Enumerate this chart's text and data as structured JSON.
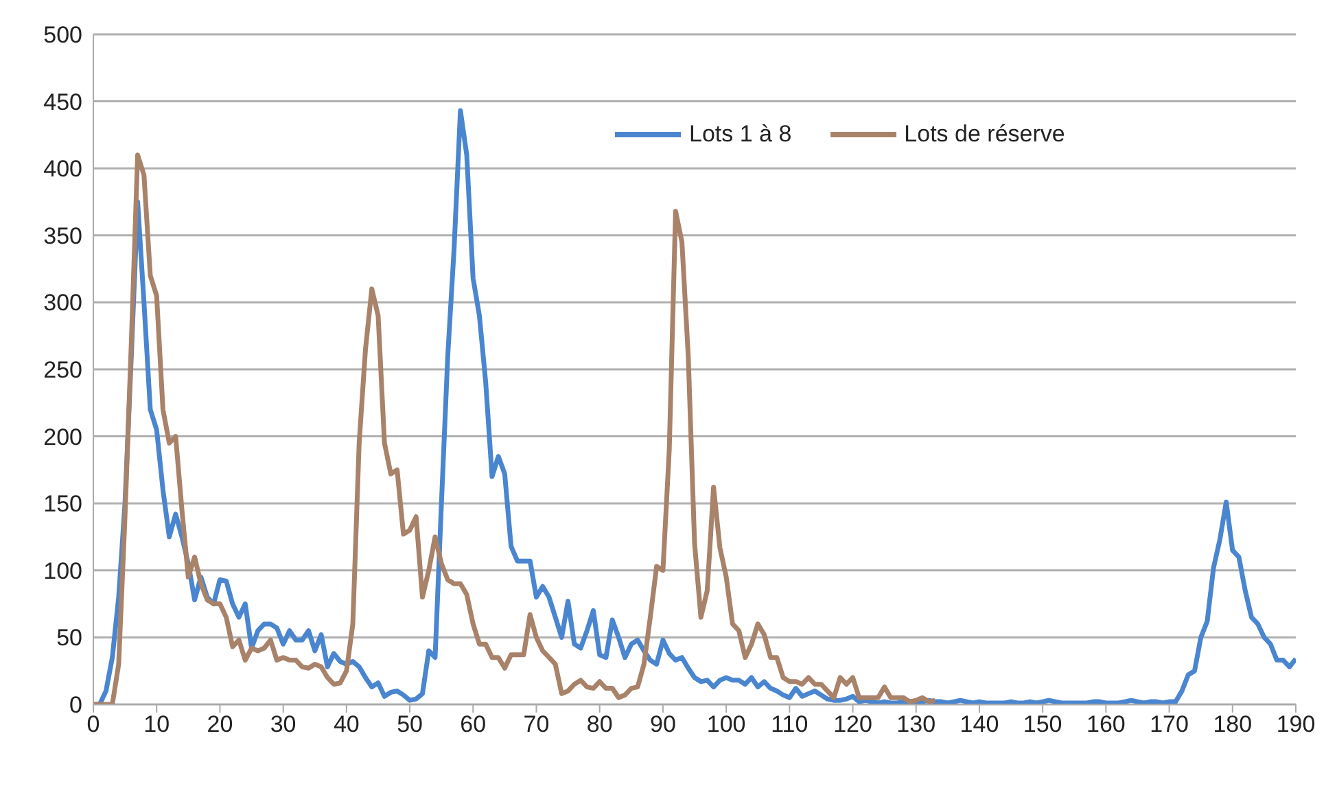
{
  "chart_data": {
    "type": "line",
    "legend": "top",
    "grid": "y",
    "marker": "none",
    "line_style": "solid",
    "x": [
      0,
      1,
      2,
      3,
      4,
      5,
      6,
      7,
      8,
      9,
      10,
      11,
      12,
      13,
      14,
      15,
      16,
      17,
      18,
      19,
      20,
      21,
      22,
      23,
      24,
      25,
      26,
      27,
      28,
      29,
      30,
      31,
      32,
      33,
      34,
      35,
      36,
      37,
      38,
      39,
      40,
      41,
      42,
      43,
      44,
      45,
      46,
      47,
      48,
      49,
      50,
      51,
      52,
      53,
      54,
      55,
      56,
      57,
      58,
      59,
      60,
      61,
      62,
      63,
      64,
      65,
      66,
      67,
      68,
      69,
      70,
      71,
      72,
      73,
      74,
      75,
      76,
      77,
      78,
      79,
      80,
      81,
      82,
      83,
      84,
      85,
      86,
      87,
      88,
      89,
      90,
      91,
      92,
      93,
      94,
      95,
      96,
      97,
      98,
      99,
      100,
      101,
      102,
      103,
      104,
      105,
      106,
      107,
      108,
      109,
      110,
      111,
      112,
      113,
      114,
      115,
      116,
      117,
      118,
      119,
      120,
      121,
      122,
      123,
      124,
      125,
      126,
      127,
      128,
      129,
      130,
      131,
      132,
      133,
      134,
      135,
      136,
      137,
      138,
      139,
      140,
      141,
      142,
      143,
      144,
      145,
      146,
      147,
      148,
      149,
      150,
      151,
      152,
      153,
      154,
      155,
      156,
      157,
      158,
      159,
      160,
      161,
      162,
      163,
      164,
      165,
      166,
      167,
      168,
      169,
      170,
      171,
      172,
      173,
      174,
      175,
      176,
      177,
      178,
      179,
      180,
      181,
      182,
      183,
      184,
      185,
      186,
      187,
      188,
      189,
      190
    ],
    "xlim": [
      0,
      190
    ],
    "xticks": [
      0,
      10,
      20,
      30,
      40,
      50,
      60,
      70,
      80,
      90,
      100,
      110,
      120,
      130,
      140,
      150,
      160,
      170,
      180,
      190
    ],
    "ylim": [
      0,
      500
    ],
    "yticks": [
      0,
      50,
      100,
      150,
      200,
      250,
      300,
      350,
      400,
      450,
      500
    ],
    "series": [
      {
        "name": "Lots 1 à 8",
        "color": "#4a86d0",
        "values": [
          0,
          0,
          10,
          35,
          80,
          150,
          260,
          375,
          300,
          220,
          205,
          160,
          125,
          142,
          125,
          105,
          78,
          95,
          80,
          75,
          93,
          92,
          75,
          65,
          75,
          42,
          55,
          60,
          60,
          57,
          45,
          55,
          48,
          48,
          55,
          40,
          52,
          28,
          38,
          32,
          30,
          32,
          28,
          20,
          13,
          16,
          6,
          9,
          10,
          7,
          3,
          4,
          8,
          40,
          35,
          150,
          260,
          340,
          443,
          410,
          318,
          290,
          240,
          170,
          185,
          172,
          118,
          107,
          107,
          107,
          80,
          88,
          80,
          65,
          50,
          77,
          45,
          42,
          55,
          70,
          37,
          35,
          63,
          50,
          35,
          45,
          48,
          40,
          33,
          30,
          48,
          38,
          33,
          35,
          27,
          20,
          17,
          18,
          13,
          18,
          20,
          18,
          18,
          15,
          20,
          13,
          17,
          12,
          10,
          7,
          5,
          12,
          6,
          8,
          10,
          7,
          4,
          3,
          3,
          4,
          6,
          2,
          3,
          2,
          1,
          2,
          1,
          1,
          2,
          1,
          1,
          2,
          3,
          2,
          2,
          1,
          2,
          3,
          2,
          1,
          2,
          1,
          1,
          1,
          1,
          2,
          1,
          1,
          2,
          1,
          2,
          3,
          2,
          1,
          1,
          1,
          1,
          1,
          2,
          2,
          1,
          1,
          1,
          2,
          3,
          2,
          1,
          2,
          2,
          1,
          2,
          2,
          10,
          22,
          25,
          50,
          62,
          102,
          123,
          151,
          115,
          110,
          85,
          65,
          60,
          50,
          45,
          33,
          33,
          28,
          34
        ]
      },
      {
        "name": "Lots de réserve",
        "color": "#a9826a",
        "values": [
          0,
          0,
          0,
          0,
          30,
          140,
          270,
          410,
          395,
          320,
          305,
          220,
          195,
          200,
          145,
          95,
          110,
          90,
          78,
          75,
          75,
          65,
          43,
          48,
          33,
          42,
          40,
          42,
          48,
          33,
          35,
          33,
          33,
          28,
          27,
          30,
          28,
          20,
          15,
          16,
          25,
          60,
          195,
          265,
          310,
          290,
          195,
          172,
          175,
          127,
          130,
          140,
          80,
          100,
          125,
          105,
          93,
          90,
          90,
          82,
          60,
          45,
          45,
          35,
          35,
          27,
          37,
          37,
          37,
          67,
          50,
          40,
          35,
          30,
          8,
          10,
          15,
          18,
          13,
          12,
          17,
          12,
          12,
          5,
          7,
          12,
          13,
          30,
          65,
          103,
          100,
          190,
          368,
          345,
          260,
          120,
          65,
          85,
          162,
          117,
          95,
          60,
          55,
          35,
          45,
          60,
          52,
          35,
          35,
          20,
          17,
          17,
          15,
          20,
          15,
          15,
          10,
          5,
          20,
          15,
          20,
          5,
          5,
          5,
          5,
          13,
          5,
          5,
          5,
          2,
          3,
          5,
          2,
          3,
          null,
          null,
          null,
          null,
          null,
          null,
          null,
          null,
          null,
          null,
          null,
          null,
          null,
          null,
          null,
          null,
          null,
          null,
          null,
          null,
          null,
          null,
          null,
          null,
          null,
          null,
          null,
          null,
          null,
          null,
          null,
          null,
          null,
          null,
          null,
          null,
          null,
          null,
          null,
          null,
          null,
          null,
          null,
          null,
          null,
          null,
          null,
          null,
          null,
          null,
          null,
          null,
          null,
          null,
          null,
          null,
          null
        ]
      }
    ]
  }
}
